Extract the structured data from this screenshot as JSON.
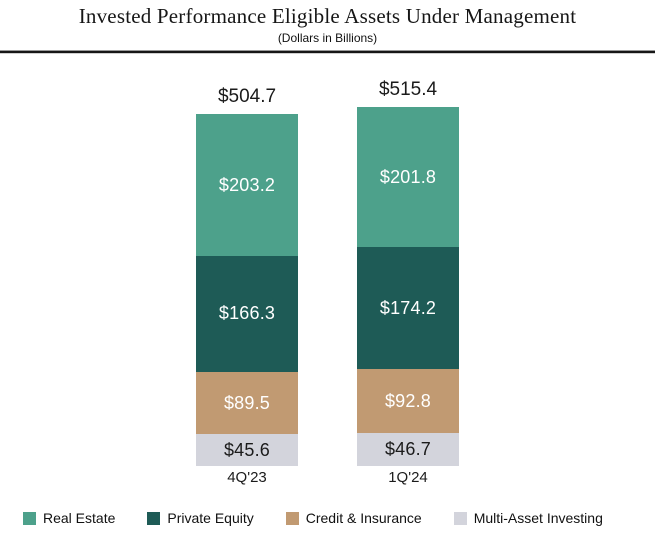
{
  "header": {
    "title": "Invested Performance Eligible Assets Under Management",
    "subtitle": "(Dollars in Billions)"
  },
  "chart_data": {
    "type": "bar",
    "stacked": true,
    "title": "Invested Performance Eligible Assets Under Management",
    "subtitle": "(Dollars in Billions)",
    "units": "USD billions",
    "categories": [
      "4Q'23",
      "1Q'24"
    ],
    "totals": [
      504.7,
      515.4
    ],
    "total_labels": [
      "$504.7",
      "$515.4"
    ],
    "series": [
      {
        "name": "Real Estate",
        "color": "#4DA18B",
        "values": [
          203.2,
          201.8
        ],
        "labels": [
          "$203.2",
          "$201.8"
        ],
        "label_color": "#FFFFFF"
      },
      {
        "name": "Private Equity",
        "color": "#1E5B56",
        "values": [
          166.3,
          174.2
        ],
        "labels": [
          "$166.3",
          "$174.2"
        ],
        "label_color": "#FFFFFF"
      },
      {
        "name": "Credit & Insurance",
        "color": "#C19A72",
        "values": [
          89.5,
          92.8
        ],
        "labels": [
          "$89.5",
          "$92.8"
        ],
        "label_color": "#FFFFFF"
      },
      {
        "name": "Multi-Asset Investing",
        "color": "#D3D4DC",
        "values": [
          45.6,
          46.7
        ],
        "labels": [
          "$45.6",
          "$46.7"
        ],
        "label_color": "#1B1B1B"
      }
    ],
    "series_order": "top-to-bottom",
    "legend_position": "bottom",
    "y_axis_visible": false,
    "grid": false
  }
}
